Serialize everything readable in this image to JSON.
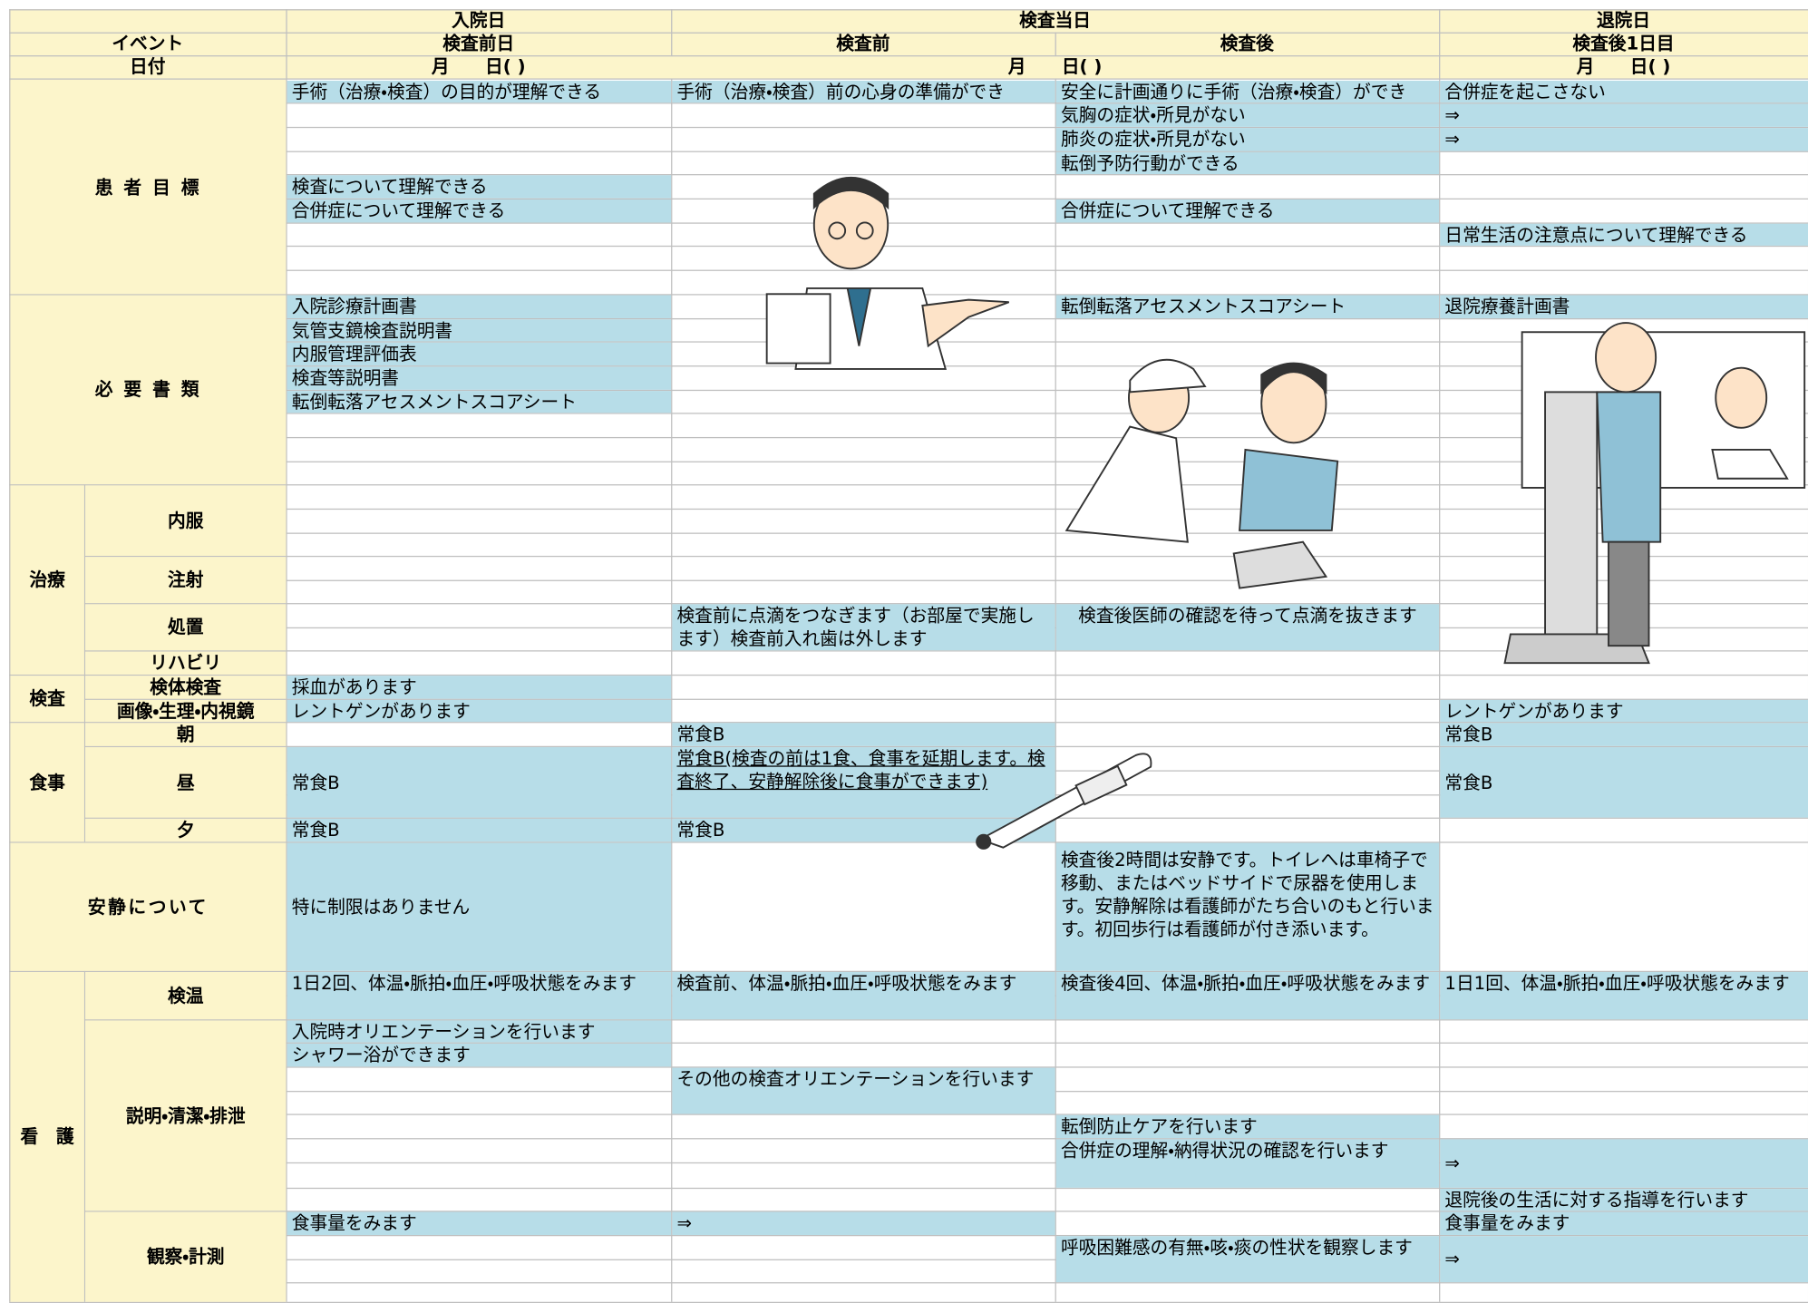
{
  "header": {
    "top": [
      "入院日",
      "検査当日",
      "退院日"
    ],
    "event": "イベント",
    "phases": [
      "検査前日",
      "検査前",
      "検査後",
      "検査後1日目"
    ],
    "date_label": "日付",
    "dates": [
      "月　　日(  )",
      "月　　日(  )",
      "月　　日(  )"
    ]
  },
  "goals": {
    "label": "患 者 目 標",
    "cells": [
      [
        "手術（治療・検査）の目的が理解できる",
        "検査について理解できる",
        "合併症について理解できる"
      ],
      [
        "手術（治療・検査）前の心身の準備ができ"
      ],
      [
        "安全に計画通りに手術（治療・検査）ができ",
        "気胸の症状・所見がない",
        "肺炎の症状・所見がない",
        "転倒予防行動ができる",
        "合併症について理解できる"
      ],
      [
        "合併症を起こさない",
        "⇒",
        "⇒",
        "日常生活の注意点について理解できる"
      ]
    ]
  },
  "docs": {
    "label": "必 要 書 類",
    "cells": [
      [
        "入院診療計画書",
        "気管支鏡検査説明書",
        "内服管理評価表",
        "検査等説明書",
        "転倒転落アセスメントスコアシート"
      ],
      [],
      [
        "転倒転落アセスメントスコアシート"
      ],
      [
        "退院療養計画書"
      ]
    ]
  },
  "treatment": {
    "label": "治療",
    "sub": [
      "内服",
      "注射",
      "処置",
      "リハビリ"
    ],
    "procedure_before": "検査前に点滴をつなぎます（お部屋で実施します）検査前入れ歯は外します",
    "procedure_after": "検査後医師の確認を待って点滴を抜きます"
  },
  "exams": {
    "label": "検査",
    "sub": [
      "検体検査",
      "画像・生理・内視鏡"
    ],
    "specimen": "採血があります",
    "imaging": [
      "レントゲンがあります",
      "レントゲンがあります"
    ]
  },
  "meals": {
    "label": "食事",
    "sub": [
      "朝",
      "昼",
      "夕"
    ],
    "breakfast": [
      "常食B",
      "常食B"
    ],
    "lunch": [
      "常食B",
      "常食B(検査の前は1食、食事を延期します。検査終了、安静解除後に食事ができます)",
      "常食B"
    ],
    "dinner": [
      "常食B",
      "常食B"
    ]
  },
  "rest": {
    "label": "安静について",
    "day_before": "特に制限はありません",
    "after": "検査後2時間は安静です。トイレへは車椅子で移動、またはベッドサイドで尿器を使用します。安静解除は看護師がたち合いのもと行います。初回歩行は看護師が付き添います。"
  },
  "nursing": {
    "label": "看　護",
    "sub": [
      "検温",
      "説明・清潔・排泄",
      "観察・計測"
    ],
    "temperature": [
      "1日2回、体温・脈拍・血圧・呼吸状態をみます",
      "検査前、体温・脈拍・血圧・呼吸状態をみます",
      "検査後4回、体温・脈拍・血圧・呼吸状態をみます",
      "1日1回、体温・脈拍・血圧・呼吸状態をみます"
    ],
    "explanation": {
      "day_before": [
        "入院時オリエンテーションを行います",
        "シャワー浴ができます"
      ],
      "before": [
        "その他の検査オリエンテーションを行います"
      ],
      "after": [
        "転倒防止ケアを行います",
        "合併症の理解・納得状況の確認を行います"
      ],
      "day1": [
        "⇒",
        "退院後の生活に対する指導を行います"
      ]
    },
    "observation": {
      "day_before": [
        "食事量をみます"
      ],
      "before": [
        "⇒"
      ],
      "after": [
        "呼吸困難感の有無・咳・痰の性状を観察します"
      ],
      "day1": [
        "食事量をみます",
        "⇒"
      ]
    }
  }
}
